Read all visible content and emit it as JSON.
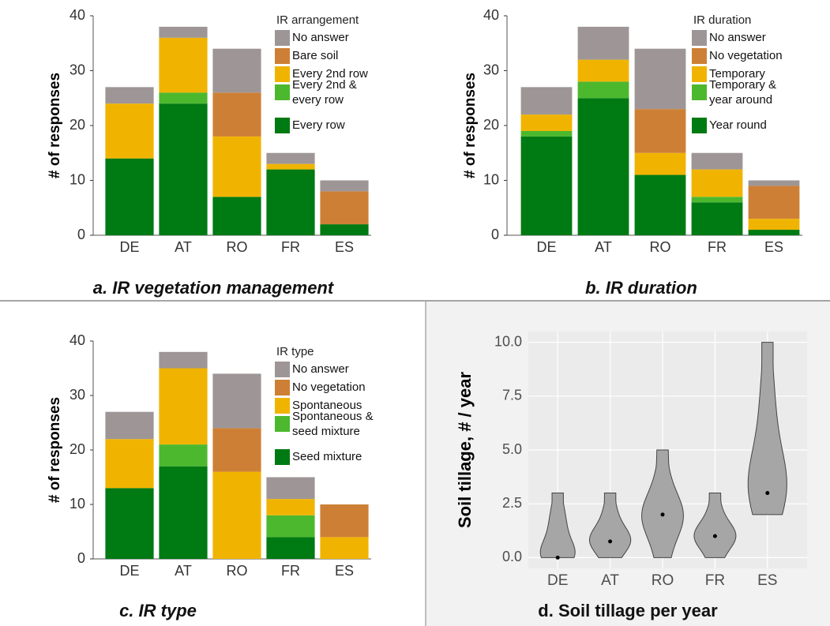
{
  "chart_data": [
    {
      "type": "bar",
      "stacked": true,
      "title": "a. IR vegetation management",
      "ylabel": "# of responses",
      "legend_title": "IR arrangement",
      "categories": [
        "DE",
        "AT",
        "RO",
        "FR",
        "ES"
      ],
      "series": [
        {
          "name": "Every row",
          "color": "#007a12",
          "values": [
            14,
            24,
            7,
            12,
            2
          ]
        },
        {
          "name": "Every 2nd & every row",
          "color": "#4cb82e",
          "values": [
            0,
            2,
            0,
            0,
            0
          ]
        },
        {
          "name": "Every 2nd row",
          "color": "#f0b400",
          "values": [
            10,
            10,
            11,
            1,
            0
          ]
        },
        {
          "name": "Bare soil",
          "color": "#cd8035",
          "values": [
            0,
            0,
            8,
            0,
            6
          ]
        },
        {
          "name": "No answer",
          "color": "#9e9696",
          "values": [
            3,
            2,
            8,
            2,
            2
          ]
        }
      ],
      "ylim": [
        0,
        40
      ],
      "yticks": [
        0,
        10,
        20,
        30,
        40
      ]
    },
    {
      "type": "bar",
      "stacked": true,
      "title": "b. IR duration",
      "ylabel": "# of responses",
      "legend_title": "IR duration",
      "categories": [
        "DE",
        "AT",
        "RO",
        "FR",
        "ES"
      ],
      "series": [
        {
          "name": "Year round",
          "color": "#007a12",
          "values": [
            18,
            25,
            11,
            6,
            1
          ]
        },
        {
          "name": "Temporary & year around",
          "color": "#4cb82e",
          "values": [
            1,
            3,
            0,
            1,
            0
          ]
        },
        {
          "name": "Temporary",
          "color": "#f0b400",
          "values": [
            3,
            4,
            4,
            5,
            2
          ]
        },
        {
          "name": "No vegetation",
          "color": "#cd8035",
          "values": [
            0,
            0,
            8,
            0,
            6
          ]
        },
        {
          "name": "No answer",
          "color": "#9e9696",
          "values": [
            5,
            6,
            11,
            3,
            1
          ]
        }
      ],
      "ylim": [
        0,
        40
      ],
      "yticks": [
        0,
        10,
        20,
        30,
        40
      ]
    },
    {
      "type": "bar",
      "stacked": true,
      "title": "c. IR type",
      "ylabel": "# of responses",
      "legend_title": "IR type",
      "categories": [
        "DE",
        "AT",
        "RO",
        "FR",
        "ES"
      ],
      "series": [
        {
          "name": "Seed mixture",
          "color": "#007a12",
          "values": [
            13,
            17,
            0,
            4,
            0
          ]
        },
        {
          "name": "Spontaneous & seed mixture",
          "color": "#4cb82e",
          "values": [
            0,
            4,
            0,
            4,
            0
          ]
        },
        {
          "name": "Spontaneous",
          "color": "#f0b400",
          "values": [
            9,
            14,
            16,
            3,
            4
          ]
        },
        {
          "name": "No vegetation",
          "color": "#cd8035",
          "values": [
            0,
            0,
            8,
            0,
            6
          ]
        },
        {
          "name": "No answer",
          "color": "#9e9696",
          "values": [
            5,
            3,
            10,
            4,
            0
          ]
        }
      ],
      "ylim": [
        0,
        40
      ],
      "yticks": [
        0,
        10,
        20,
        30,
        40
      ]
    },
    {
      "type": "violin",
      "title": "d. Soil tillage per year",
      "ylabel": "Soil tillage, # / year",
      "categories": [
        "DE",
        "AT",
        "RO",
        "FR",
        "ES"
      ],
      "min": [
        0,
        0,
        0,
        0,
        2
      ],
      "max": [
        3,
        3,
        5,
        3,
        10
      ],
      "values": [
        0,
        0.75,
        2,
        1,
        3
      ],
      "color": "#a6a6a6",
      "grid": true,
      "ylim": [
        -0.5,
        10.5
      ],
      "yticks": [
        {
          "value": 0,
          "label": "0.0"
        },
        {
          "value": 2.5,
          "label": "2.5"
        },
        {
          "value": 5,
          "label": "5.0"
        },
        {
          "value": 7.5,
          "label": "7.5"
        },
        {
          "value": 10,
          "label": "10.0"
        }
      ]
    }
  ]
}
